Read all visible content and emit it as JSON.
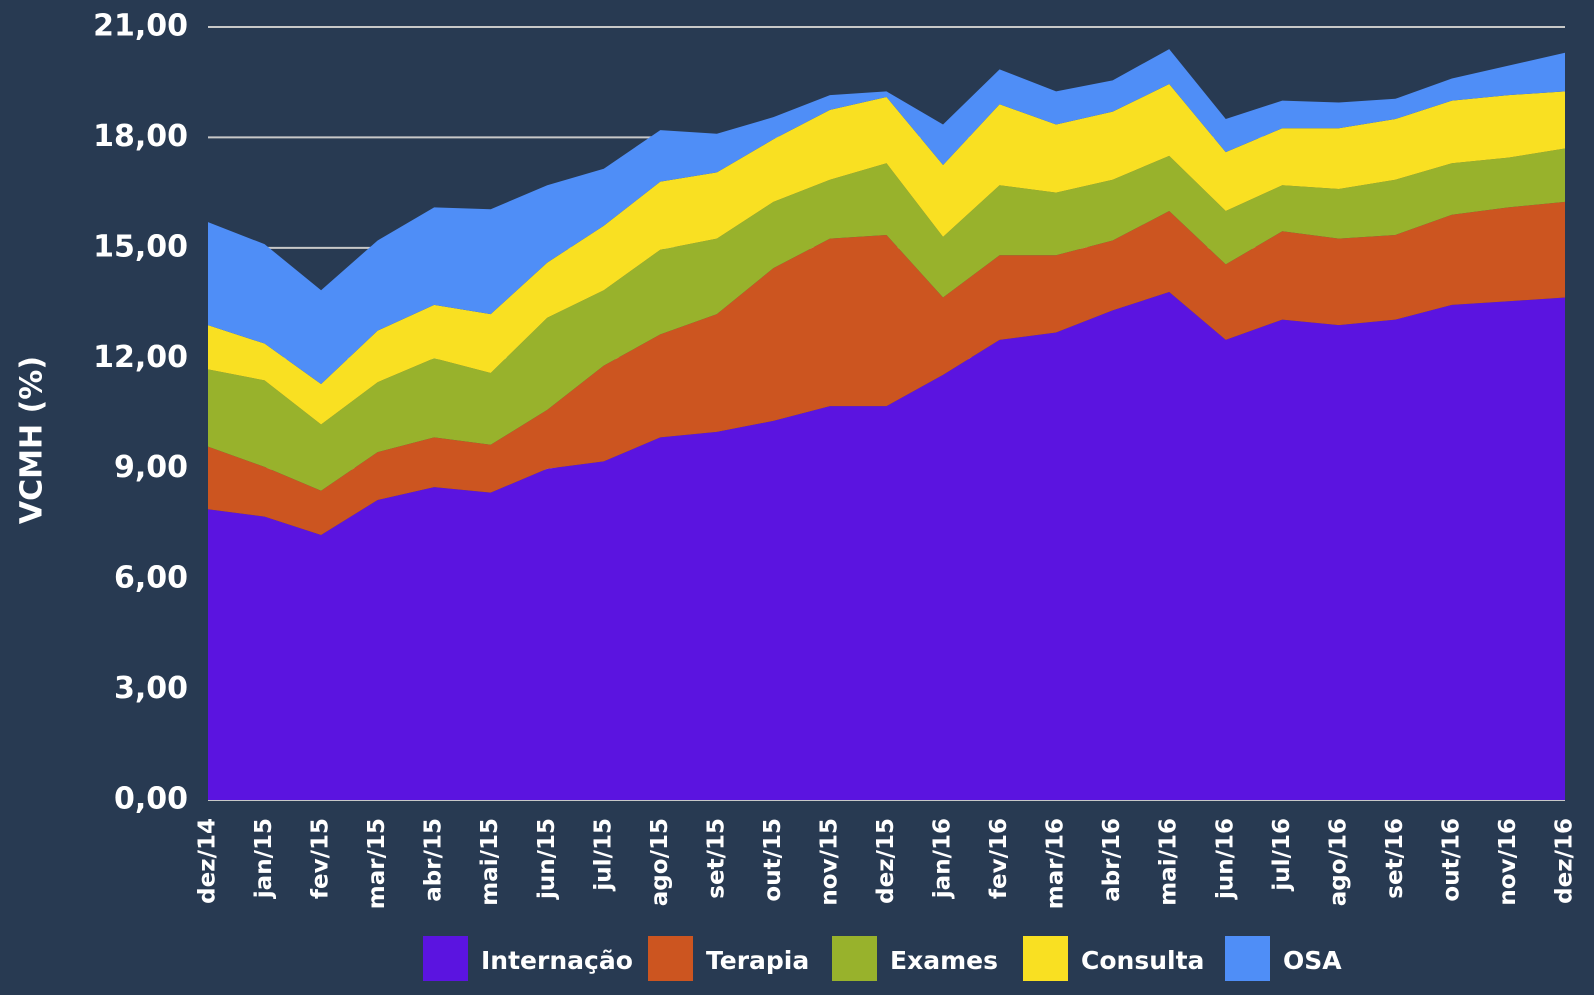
{
  "chart_data": {
    "type": "stacked_area",
    "y_label": "VCMH (%)",
    "categories": [
      "dez/14",
      "jan/15",
      "fev/15",
      "mar/15",
      "abr/15",
      "mai/15",
      "jun/15",
      "jul/15",
      "ago/15",
      "set/15",
      "out/15",
      "nov/15",
      "dez/15",
      "jan/16",
      "fev/16",
      "mar/16",
      "abr/16",
      "mai/16",
      "jun/16",
      "jul/16",
      "ago/16",
      "set/16",
      "out/16",
      "nov/16",
      "dez/16"
    ],
    "series": [
      {
        "name": "Internação",
        "color": "#5b14e0",
        "values": [
          7.9,
          7.7,
          7.2,
          8.15,
          8.5,
          8.35,
          9.0,
          9.2,
          9.85,
          10.0,
          10.3,
          10.7,
          10.7,
          11.55,
          12.5,
          12.7,
          13.3,
          13.8,
          12.5,
          13.05,
          12.9,
          13.05,
          13.45,
          13.55,
          13.65
        ]
      },
      {
        "name": "Terapia",
        "color": "#cc5520",
        "values": [
          1.7,
          1.35,
          1.2,
          1.3,
          1.35,
          1.3,
          1.6,
          2.6,
          2.8,
          3.2,
          4.15,
          4.55,
          4.65,
          2.1,
          2.3,
          2.1,
          1.9,
          2.2,
          2.05,
          2.4,
          2.35,
          2.3,
          2.45,
          2.55,
          2.6
        ]
      },
      {
        "name": "Exames",
        "color": "#98b22c",
        "values": [
          2.1,
          2.35,
          1.8,
          1.9,
          2.15,
          1.95,
          2.5,
          2.05,
          2.3,
          2.05,
          1.8,
          1.6,
          1.95,
          1.65,
          1.9,
          1.7,
          1.65,
          1.5,
          1.45,
          1.25,
          1.35,
          1.5,
          1.4,
          1.35,
          1.45
        ]
      },
      {
        "name": "Consulta",
        "color": "#f9e022",
        "values": [
          1.2,
          1.0,
          1.1,
          1.4,
          1.45,
          1.6,
          1.5,
          1.75,
          1.85,
          1.8,
          1.7,
          1.9,
          1.8,
          1.95,
          2.2,
          1.85,
          1.85,
          1.95,
          1.6,
          1.55,
          1.65,
          1.65,
          1.7,
          1.7,
          1.55
        ]
      },
      {
        "name": "OSA",
        "color": "#4f8ef7",
        "values": [
          2.8,
          2.7,
          2.55,
          2.45,
          2.65,
          2.85,
          2.1,
          1.55,
          1.4,
          1.05,
          0.6,
          0.4,
          0.15,
          1.1,
          0.95,
          0.9,
          0.85,
          0.95,
          0.9,
          0.75,
          0.7,
          0.55,
          0.6,
          0.8,
          1.05
        ]
      }
    ],
    "ylim": [
      0,
      21
    ],
    "yticks": [
      {
        "value": 0,
        "label": "0,00"
      },
      {
        "value": 3,
        "label": "3,00"
      },
      {
        "value": 6,
        "label": "6,00"
      },
      {
        "value": 9,
        "label": "9,00"
      },
      {
        "value": 12,
        "label": "12,00"
      },
      {
        "value": 15,
        "label": "15,00"
      },
      {
        "value": 18,
        "label": "18,00"
      },
      {
        "value": 21,
        "label": "21,00"
      }
    ],
    "grid": true,
    "legend": "bottom"
  }
}
